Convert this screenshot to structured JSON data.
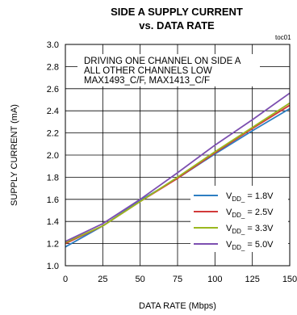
{
  "chart_data": {
    "type": "line",
    "title": "SIDE A SUPPLY CURRENT",
    "subtitle": "vs. DATA RATE",
    "figure_tag": "toc01",
    "annotation_lines": [
      "DRIVING ONE CHANNEL ON SIDE A",
      "ALL OTHER CHANNELS LOW",
      "MAX1493_C/F, MAX1413_C/F"
    ],
    "xlabel": "DATA RATE (Mbps)",
    "ylabel": "SUPPLY CURRENT (mA)",
    "xlim": [
      0,
      150
    ],
    "ylim": [
      1.0,
      3.0
    ],
    "x_ticks": [
      "0",
      "25",
      "50",
      "75",
      "100",
      "125",
      "150"
    ],
    "y_ticks": [
      "1.0",
      "1.2",
      "1.4",
      "1.6",
      "1.8",
      "2.0",
      "2.2",
      "2.4",
      "2.6",
      "2.8",
      "3.0"
    ],
    "grid": true,
    "legend_position": "bottom-right",
    "x": [
      0,
      25,
      50,
      75,
      100,
      125,
      150
    ],
    "series": [
      {
        "name": "1.8V",
        "color": "#2e7ec2",
        "values": [
          1.17,
          1.36,
          1.59,
          1.79,
          2.01,
          2.22,
          2.42
        ]
      },
      {
        "name": "2.5V",
        "color": "#d23a3a",
        "values": [
          1.2,
          1.36,
          1.58,
          1.79,
          2.02,
          2.24,
          2.45
        ]
      },
      {
        "name": "3.3V",
        "color": "#9ab81f",
        "values": [
          1.21,
          1.36,
          1.58,
          1.8,
          2.03,
          2.25,
          2.47
        ]
      },
      {
        "name": "5.0V",
        "color": "#7c4fb0",
        "values": [
          1.22,
          1.38,
          1.6,
          1.84,
          2.09,
          2.32,
          2.56
        ]
      }
    ],
    "legend_prefix": "V",
    "legend_subscript": "DD_",
    "legend_separator": " = "
  }
}
